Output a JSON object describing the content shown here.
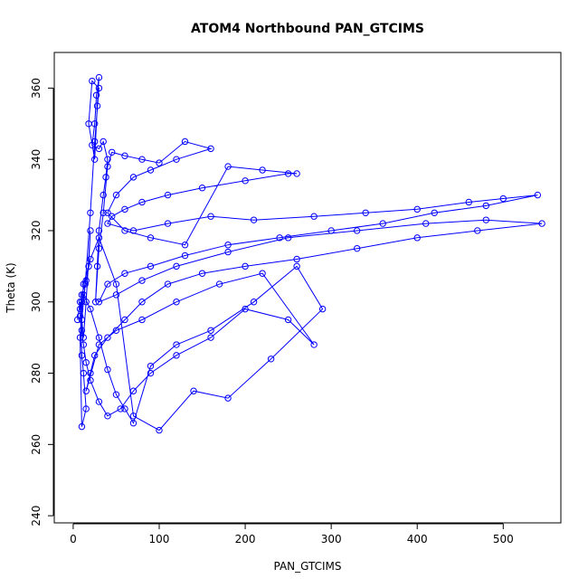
{
  "chart_data": {
    "type": "scatter",
    "lines": true,
    "title": "ATOM4 Northbound PAN_GTCIMS",
    "x_label": "PAN_GTCIMS",
    "y_label": "Theta (K)",
    "color": "#0000ff",
    "xlim": [
      -22,
      567
    ],
    "ylim": [
      238,
      370
    ],
    "xticks": [
      0,
      100,
      200,
      300,
      400,
      500
    ],
    "yticks": [
      240,
      260,
      280,
      300,
      320,
      340,
      360
    ],
    "x": [
      5,
      8,
      10,
      12,
      15,
      10,
      8,
      12,
      18,
      20,
      15,
      12,
      10,
      14,
      20,
      25,
      30,
      22,
      18,
      25,
      28,
      30,
      27,
      25,
      22,
      30,
      35,
      40,
      38,
      35,
      30,
      28,
      26,
      30,
      35,
      40,
      45,
      60,
      80,
      100,
      130,
      160,
      120,
      90,
      70,
      50,
      40,
      60,
      90,
      130,
      180,
      220,
      260,
      250,
      200,
      150,
      110,
      80,
      60,
      45,
      40,
      70,
      110,
      160,
      210,
      280,
      340,
      400,
      460,
      500,
      540,
      480,
      420,
      360,
      300,
      240,
      180,
      130,
      90,
      60,
      40,
      30,
      50,
      80,
      120,
      180,
      250,
      330,
      410,
      480,
      545,
      470,
      400,
      330,
      260,
      200,
      150,
      110,
      80,
      60,
      40,
      25,
      20,
      15,
      30,
      50,
      80,
      120,
      170,
      220,
      280,
      250,
      200,
      160,
      120,
      90,
      70,
      55,
      40,
      30,
      20,
      15,
      12,
      10,
      8,
      10,
      15,
      20,
      30,
      50,
      70,
      100,
      140,
      180,
      230,
      290,
      260,
      210,
      160,
      120,
      90,
      70,
      60,
      50,
      40,
      30,
      20,
      12,
      10,
      8
    ],
    "y": [
      295,
      300,
      285,
      280,
      270,
      265,
      290,
      305,
      310,
      320,
      300,
      290,
      295,
      305,
      325,
      345,
      360,
      362,
      350,
      340,
      355,
      363,
      358,
      350,
      344,
      343,
      345,
      340,
      335,
      330,
      320,
      310,
      300,
      315,
      325,
      338,
      342,
      341,
      340,
      339,
      345,
      343,
      340,
      337,
      335,
      330,
      325,
      320,
      318,
      316,
      338,
      337,
      336,
      336,
      334,
      332,
      330,
      328,
      326,
      324,
      322,
      320,
      322,
      324,
      323,
      324,
      325,
      326,
      328,
      329,
      330,
      327,
      325,
      322,
      320,
      318,
      316,
      313,
      310,
      308,
      305,
      300,
      302,
      306,
      310,
      314,
      318,
      320,
      322,
      323,
      322,
      320,
      318,
      315,
      312,
      310,
      308,
      305,
      300,
      295,
      290,
      285,
      280,
      275,
      288,
      292,
      295,
      300,
      305,
      308,
      288,
      295,
      298,
      290,
      285,
      280,
      275,
      270,
      268,
      272,
      278,
      283,
      288,
      292,
      298,
      302,
      306,
      312,
      318,
      305,
      268,
      264,
      275,
      273,
      284,
      298,
      310,
      300,
      292,
      288,
      282,
      266,
      270,
      274,
      281,
      290,
      298,
      302,
      300,
      296
    ]
  }
}
